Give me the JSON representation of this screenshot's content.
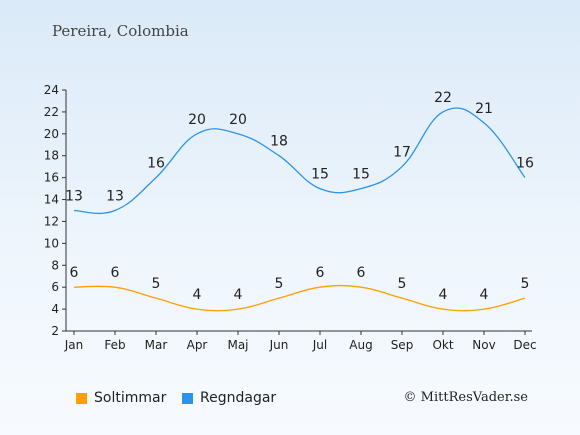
{
  "title": "Pereira, Colombia",
  "copyright": "© MittResVader.se",
  "chart_data": {
    "type": "line",
    "categories": [
      "Jan",
      "Feb",
      "Mar",
      "Apr",
      "Maj",
      "Jun",
      "Jul",
      "Aug",
      "Sep",
      "Okt",
      "Nov",
      "Dec"
    ],
    "series": [
      {
        "name": "Soltimmar",
        "color": "#ff9f00",
        "values": [
          6,
          6,
          5,
          4,
          4,
          5,
          6,
          6,
          5,
          4,
          4,
          5
        ]
      },
      {
        "name": "Regndagar",
        "color": "#2a94e8",
        "values": [
          13,
          13,
          16,
          20,
          20,
          18,
          15,
          15,
          17,
          22,
          21,
          16
        ]
      }
    ],
    "ylim": [
      2,
      24
    ],
    "yticks": [
      2,
      4,
      6,
      8,
      10,
      12,
      14,
      16,
      18,
      20,
      22,
      24
    ],
    "legend_position": "bottom-left",
    "grid": false
  }
}
